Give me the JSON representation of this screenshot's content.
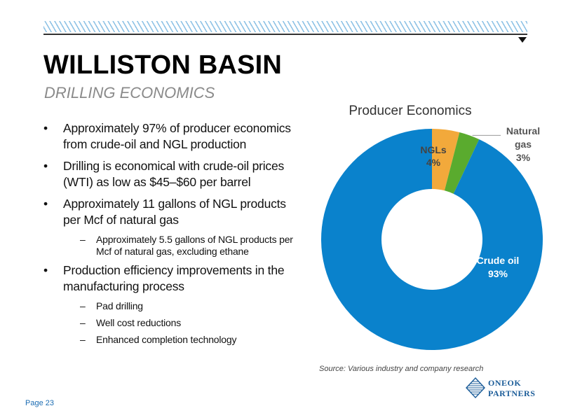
{
  "header": {
    "title": "WILLISTON BASIN",
    "subtitle": "DRILLING ECONOMICS"
  },
  "bullets": [
    {
      "level": 1,
      "text": "Approximately 97% of producer economics from crude-oil and NGL production"
    },
    {
      "level": 1,
      "text": "Drilling is economical with crude-oil prices (WTI) as low as $45–$60 per barrel"
    },
    {
      "level": 1,
      "text": "Approximately 11 gallons of NGL products per Mcf of natural gas"
    },
    {
      "level": 2,
      "text": "Approximately 5.5 gallons of NGL products per Mcf of natural gas, excluding ethane"
    },
    {
      "level": 1,
      "text": "Production efficiency improvements in the manufacturing process"
    },
    {
      "level": 2,
      "text": "Pad drilling"
    },
    {
      "level": 2,
      "text": "Well cost reductions"
    },
    {
      "level": 2,
      "text": "Enhanced completion technology"
    }
  ],
  "bullet_symbols": {
    "level1": "•",
    "level2": "–"
  },
  "chart_data": {
    "type": "pie",
    "style": "donut",
    "title": "Producer Economics",
    "slices": [
      {
        "label": "NGLs",
        "value": 4,
        "display": "4%",
        "color": "#f2a93b"
      },
      {
        "label": "Natural gas",
        "value": 3,
        "display": "3%",
        "color": "#5aab2e"
      },
      {
        "label": "Crude oil",
        "value": 93,
        "display": "93%",
        "color": "#0a82cc"
      }
    ],
    "start": "top",
    "direction": "clockwise"
  },
  "source": "Source: Various industry and company research",
  "logo": {
    "line1": "ONEOK",
    "line2": "PARTNERS",
    "icon": "oneok-diamond-logo-icon",
    "color": "#1c5d99"
  },
  "footer": {
    "page": "Page 23"
  }
}
